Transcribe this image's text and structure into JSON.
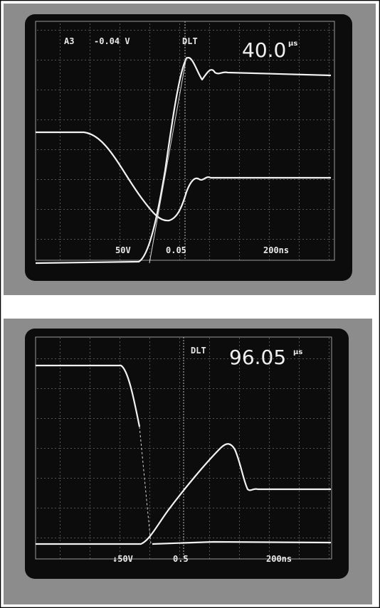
{
  "panels": [
    {
      "readouts": {
        "channel": "A3",
        "offset": "-0.04 V",
        "mode": "DLT",
        "delay": "40.0",
        "delay_unit": "µs"
      },
      "scale": {
        "volts": "50V",
        "fraction": "0.05",
        "time": "200ns"
      }
    },
    {
      "readouts": {
        "mode": "DLT",
        "delay": "96.05",
        "delay_unit": "µs"
      },
      "scale": {
        "volts": "↓50V",
        "fraction": "0.5",
        "time": "200ns"
      }
    }
  ]
}
